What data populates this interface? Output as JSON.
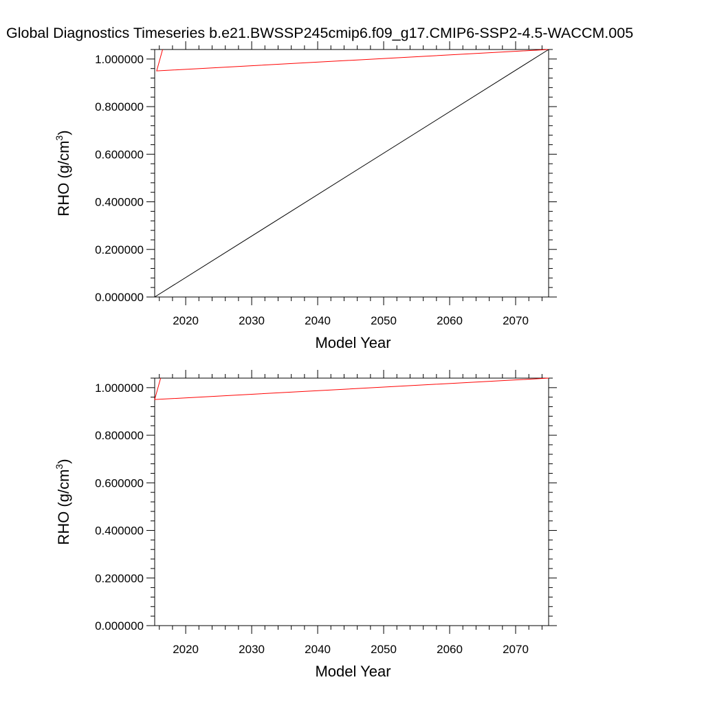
{
  "figure": {
    "title": "Global Diagnostics Timeseries b.e21.BWSSP245cmip6.f09_g17.CMIP6-SSP2-4.5-WACCM.005"
  },
  "chart_data": [
    {
      "type": "line",
      "xlabel": "Model Year",
      "ylabel": "RHO (g/cm",
      "ylabel_superscript": "3",
      "ylabel_close": ")",
      "xlim": [
        2015.3,
        2075
      ],
      "ylim": [
        0.0,
        1.04
      ],
      "x_ticks": [
        2020,
        2030,
        2040,
        2050,
        2060,
        2070
      ],
      "x_tick_labels": [
        "2020",
        "2030",
        "2040",
        "2050",
        "2060",
        "2070"
      ],
      "y_ticks": [
        0.0,
        0.2,
        0.4,
        0.6,
        0.8,
        1.0
      ],
      "y_tick_labels": [
        "0.000000",
        "0.200000",
        "0.400000",
        "0.600000",
        "0.800000",
        "1.000000"
      ],
      "series": [
        {
          "color": "#ff0000",
          "x": [
            2016.5,
            2015.6,
            2075
          ],
          "y": [
            1.04,
            0.95,
            1.04
          ]
        },
        {
          "color": "#000000",
          "x": [
            2015.3,
            2075
          ],
          "y": [
            0.0,
            1.04
          ]
        }
      ]
    },
    {
      "type": "line",
      "xlabel": "Model Year",
      "ylabel": "RHO (g/cm",
      "ylabel_superscript": "3",
      "ylabel_close": ")",
      "xlim": [
        2015.3,
        2075
      ],
      "ylim": [
        0.0,
        1.04
      ],
      "x_ticks": [
        2020,
        2030,
        2040,
        2050,
        2060,
        2070
      ],
      "x_tick_labels": [
        "2020",
        "2030",
        "2040",
        "2050",
        "2060",
        "2070"
      ],
      "y_ticks": [
        0.0,
        0.2,
        0.4,
        0.6,
        0.8,
        1.0
      ],
      "y_tick_labels": [
        "0.000000",
        "0.200000",
        "0.400000",
        "0.600000",
        "0.800000",
        "1.000000"
      ],
      "series": [
        {
          "color": "#ff0000",
          "x": [
            2016.2,
            2015.3,
            2075
          ],
          "y": [
            1.04,
            0.95,
            1.04
          ]
        }
      ]
    }
  ]
}
